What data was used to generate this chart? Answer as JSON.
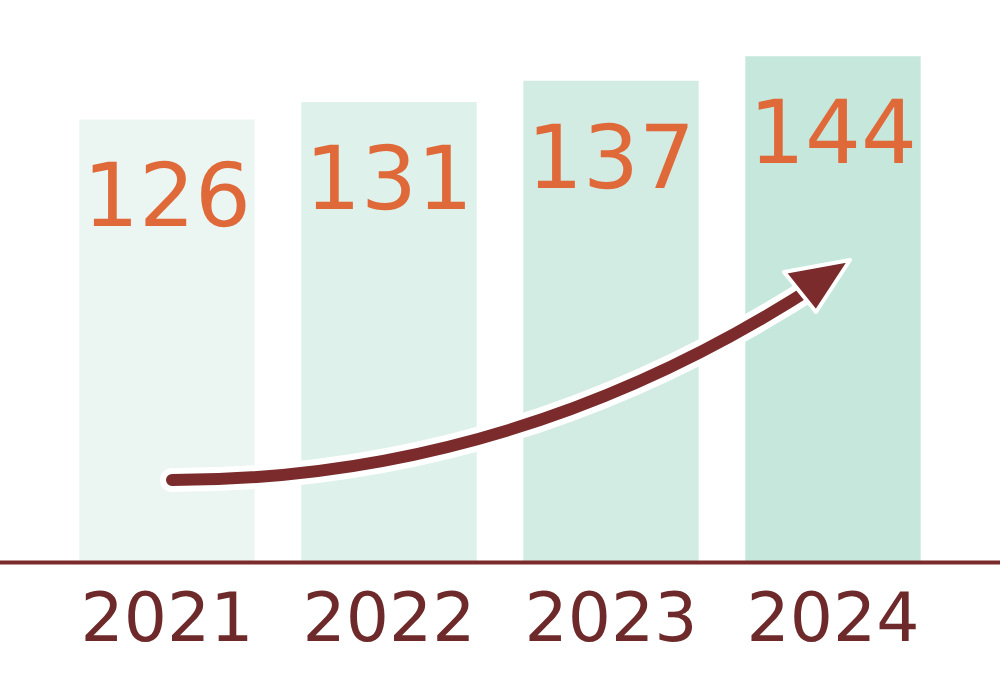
{
  "chart_data": {
    "type": "bar",
    "categories": [
      "2021",
      "2022",
      "2023",
      "2024"
    ],
    "values": [
      126,
      131,
      137,
      144
    ],
    "colors": [
      "#ebf5f1",
      "#def1ea",
      "#d2ece3",
      "#c6e7db"
    ],
    "tick_labels": "x",
    "data_labels": true,
    "grid": false,
    "legend": false
  }
}
